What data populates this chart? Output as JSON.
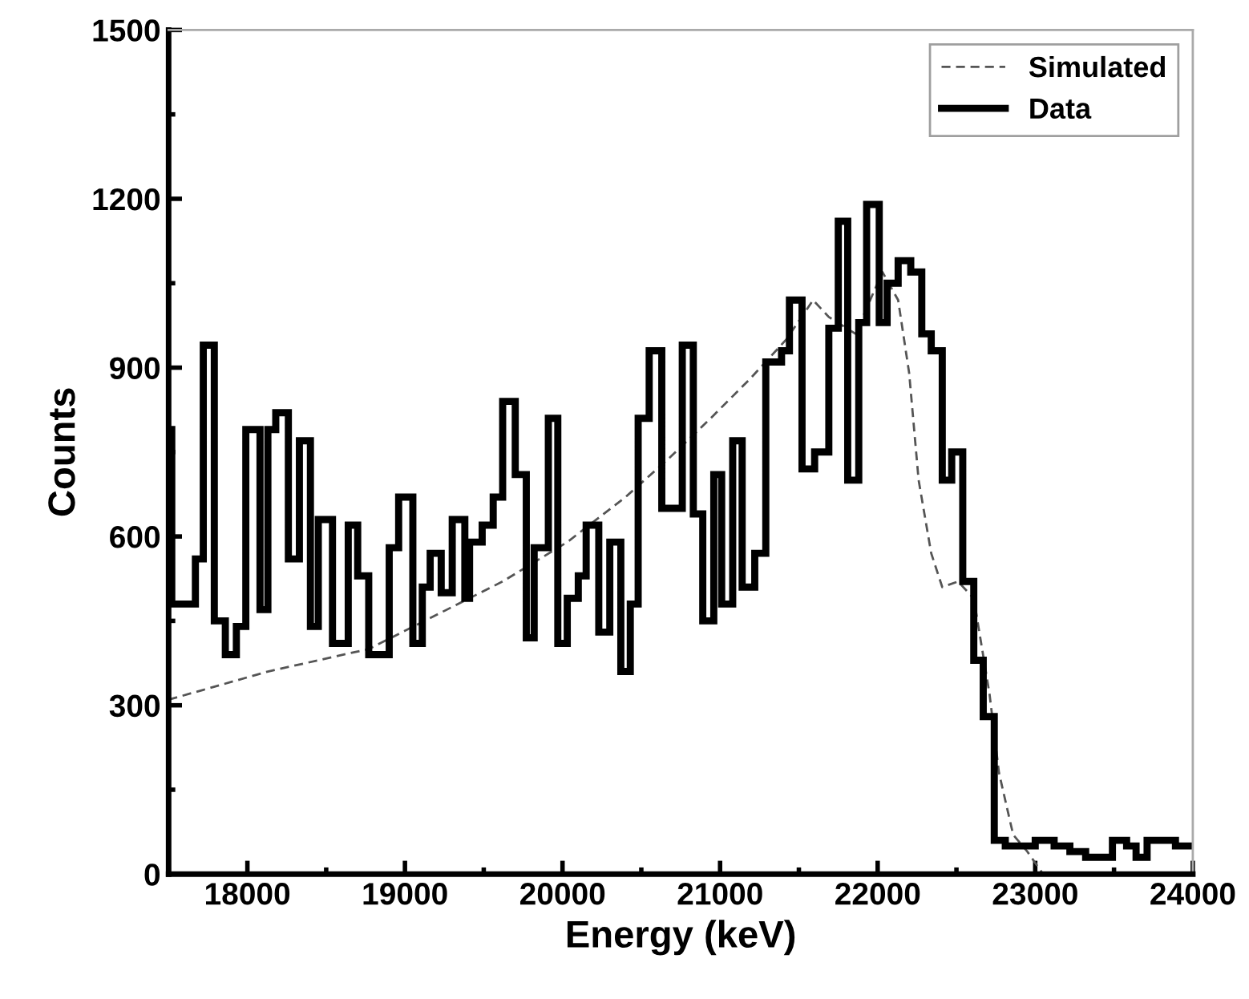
{
  "chart_data": {
    "type": "step",
    "xlabel": "Energy (keV)",
    "ylabel": "Counts",
    "xlim": [
      17500,
      24000
    ],
    "xticks": [
      18000,
      19000,
      20000,
      21000,
      22000,
      23000,
      24000
    ],
    "ylim": [
      0,
      1500
    ],
    "yticks": [
      0,
      300,
      600,
      900,
      1200,
      1500
    ],
    "grid": false,
    "legend": "top right",
    "series": [
      {
        "name": "Simulated",
        "type": "line",
        "line_style": "dashed",
        "color": "#555555",
        "x": [
          17500,
          18130,
          18770,
          19620,
          20030,
          20400,
          20680,
          20940,
          21190,
          21420,
          21590,
          21690,
          21860,
          22030,
          22130,
          22200,
          22260,
          22340,
          22410,
          22510,
          22610,
          22710,
          22770,
          22860,
          22950,
          23050,
          24000
        ],
        "values": [
          310,
          360,
          400,
          520,
          590,
          670,
          740,
          810,
          880,
          950,
          1020,
          990,
          960,
          1070,
          1020,
          890,
          700,
          570,
          510,
          520,
          490,
          320,
          180,
          70,
          40,
          0,
          0
        ]
      },
      {
        "name": "Data",
        "line_style": "solid",
        "color": "#000000",
        "x": [
          17500,
          17520,
          17670,
          17720,
          17790,
          17860,
          17930,
          17990,
          18080,
          18130,
          18180,
          18260,
          18330,
          18400,
          18450,
          18540,
          18640,
          18700,
          18770,
          18900,
          18960,
          19050,
          19110,
          19160,
          19230,
          19300,
          19380,
          19410,
          19490,
          19560,
          19620,
          19700,
          19770,
          19820,
          19910,
          19970,
          20030,
          20100,
          20150,
          20230,
          20300,
          20370,
          20430,
          20480,
          20550,
          20630,
          20760,
          20830,
          20890,
          20960,
          21010,
          21080,
          21140,
          21220,
          21290,
          21390,
          21440,
          21520,
          21600,
          21690,
          21750,
          21810,
          21880,
          21930,
          22010,
          22060,
          22130,
          22210,
          22280,
          22340,
          22410,
          22470,
          22540,
          22610,
          22670,
          22740,
          22810,
          22920,
          23000,
          23120,
          23220,
          23320,
          23490,
          23580,
          23640,
          23710,
          23890,
          24000
        ],
        "values": [
          790,
          480,
          560,
          940,
          450,
          390,
          440,
          790,
          470,
          790,
          820,
          560,
          770,
          440,
          630,
          410,
          620,
          530,
          390,
          580,
          670,
          410,
          510,
          570,
          500,
          630,
          490,
          590,
          620,
          670,
          840,
          710,
          420,
          580,
          810,
          410,
          490,
          530,
          620,
          430,
          590,
          360,
          480,
          810,
          930,
          650,
          940,
          640,
          450,
          710,
          480,
          770,
          510,
          570,
          910,
          930,
          1020,
          720,
          750,
          970,
          1160,
          700,
          980,
          1190,
          980,
          1050,
          1090,
          1070,
          960,
          930,
          700,
          750,
          520,
          380,
          280,
          60,
          50,
          50,
          60,
          50,
          40,
          30,
          60,
          50,
          30,
          60,
          50,
          50
        ]
      }
    ]
  }
}
